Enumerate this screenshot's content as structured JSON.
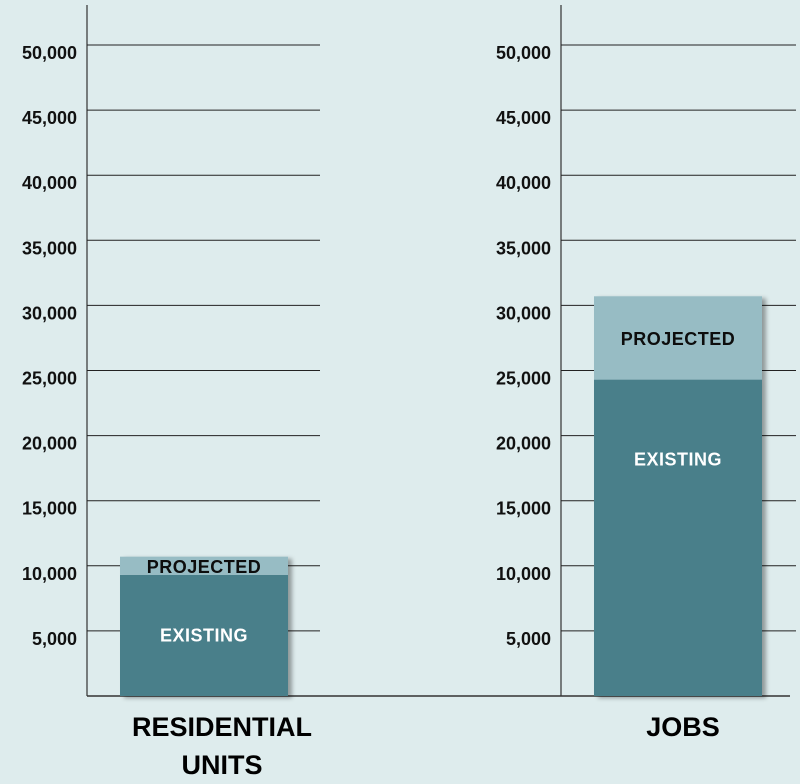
{
  "chart_data": [
    {
      "type": "bar",
      "stacked": true,
      "category": "RESIDENTIAL UNITS",
      "category_lines": [
        "RESIDENTIAL",
        "UNITS"
      ],
      "ylim": [
        0,
        50000
      ],
      "ytick_values": [
        5000,
        10000,
        15000,
        20000,
        25000,
        30000,
        35000,
        40000,
        45000,
        50000
      ],
      "ytick_labels": [
        "5,000",
        "10,000",
        "15,000",
        "20,000",
        "25,000",
        "30,000",
        "35,000",
        "40,000",
        "45,000",
        "50,000"
      ],
      "grid": true,
      "series": [
        {
          "name": "EXISTING",
          "values": [
            9300
          ]
        },
        {
          "name": "PROJECTED",
          "values": [
            1400
          ]
        }
      ]
    },
    {
      "type": "bar",
      "stacked": true,
      "category": "JOBS",
      "category_lines": [
        "JOBS"
      ],
      "ylim": [
        0,
        50000
      ],
      "ytick_values": [
        5000,
        10000,
        15000,
        20000,
        25000,
        30000,
        35000,
        40000,
        45000,
        50000
      ],
      "ytick_labels": [
        "5,000",
        "10,000",
        "15,000",
        "20,000",
        "25,000",
        "30,000",
        "35,000",
        "40,000",
        "45,000",
        "50,000"
      ],
      "grid": true,
      "series": [
        {
          "name": "EXISTING",
          "values": [
            24300
          ]
        },
        {
          "name": "PROJECTED",
          "values": [
            6400
          ]
        }
      ]
    }
  ],
  "colors": {
    "background": "#deeced",
    "existing": "#497f8a",
    "projected": "#97bcc4",
    "existing_label": "#ffffff",
    "projected_label": "#0d0d0d",
    "grid": "#222222",
    "axis": "#333333"
  }
}
